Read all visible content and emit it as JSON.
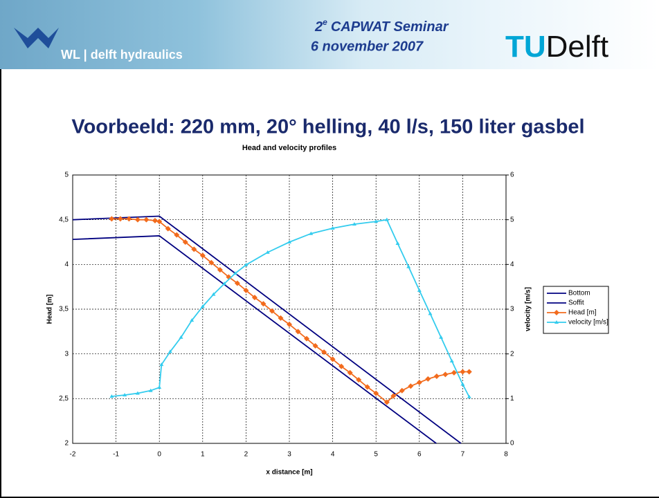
{
  "header": {
    "logo_text": "WL | delft hydraulics",
    "seminar_number": "2",
    "seminar_suffix": "e",
    "seminar_name": "CAPWAT Seminar",
    "date": "6 november 2007",
    "tu": "TU",
    "delft": "Delft"
  },
  "slide_title": "Voorbeeld: 220 mm, 20° helling, 40 l/s, 150 liter gasbel",
  "chart_data": {
    "type": "line",
    "title": "Head and velocity profiles",
    "x_label": "x distance [m]",
    "y_label": "Head [m]",
    "y2_label": "velocity [m/s]",
    "xlim": [
      -2,
      8
    ],
    "xticks": [
      -2,
      -1,
      0,
      1,
      2,
      3,
      4,
      5,
      6,
      7,
      8
    ],
    "ylim": [
      2,
      5
    ],
    "yticks": [
      2,
      {
        "value": 2.5,
        "label": "2,5"
      },
      3,
      {
        "value": 3.5,
        "label": "3,5"
      },
      4,
      {
        "value": 4.5,
        "label": "4,5"
      },
      5
    ],
    "y2lim": [
      0,
      6
    ],
    "y2ticks": [
      0,
      1,
      2,
      3,
      4,
      5,
      6
    ],
    "grid": true,
    "legend": "right",
    "series": [
      {
        "name": "Bottom",
        "color": "#000080",
        "marker": "none",
        "x": [
          -2,
          0,
          6.39
        ],
        "values": [
          4.28,
          4.32,
          2
        ]
      },
      {
        "name": "Soffit",
        "color": "#000080",
        "marker": "none",
        "x": [
          -2,
          0,
          6.96
        ],
        "values": [
          4.5,
          4.54,
          2
        ]
      },
      {
        "name": "Head [m]",
        "color": "#f26b1d",
        "marker": "diamond",
        "x": [
          -1.1,
          -0.9,
          -0.7,
          -0.5,
          -0.3,
          -0.1,
          0,
          0.2,
          0.4,
          0.6,
          0.8,
          1.0,
          1.2,
          1.4,
          1.6,
          1.8,
          2.0,
          2.2,
          2.4,
          2.6,
          2.8,
          3.0,
          3.2,
          3.4,
          3.6,
          3.8,
          4.0,
          4.2,
          4.4,
          4.6,
          4.8,
          5.0,
          5.25,
          5.4,
          5.6,
          5.8,
          6.0,
          6.2,
          6.4,
          6.6,
          6.8,
          7.0,
          7.15
        ],
        "values": [
          4.51,
          4.51,
          4.51,
          4.5,
          4.5,
          4.49,
          4.48,
          4.4,
          4.33,
          4.25,
          4.17,
          4.1,
          4.02,
          3.94,
          3.86,
          3.79,
          3.71,
          3.63,
          3.56,
          3.48,
          3.4,
          3.33,
          3.25,
          3.17,
          3.09,
          3.02,
          2.94,
          2.86,
          2.79,
          2.71,
          2.63,
          2.56,
          2.46,
          2.53,
          2.59,
          2.64,
          2.68,
          2.72,
          2.75,
          2.77,
          2.79,
          2.8,
          2.8
        ]
      },
      {
        "name": "velocity [m/s]",
        "color": "#33ccee",
        "marker": "triangle",
        "axis": "y2",
        "x": [
          -1.1,
          -0.8,
          -0.5,
          -0.2,
          0,
          0.05,
          0.25,
          0.5,
          0.75,
          1.0,
          1.25,
          1.5,
          1.75,
          2.0,
          2.5,
          3.0,
          3.5,
          4.0,
          4.5,
          5.0,
          5.25,
          5.5,
          5.75,
          6.0,
          6.25,
          6.5,
          6.75,
          7.0,
          7.15
        ],
        "values": [
          1.05,
          1.08,
          1.12,
          1.18,
          1.25,
          1.76,
          2.05,
          2.37,
          2.75,
          3.06,
          3.33,
          3.57,
          3.8,
          3.99,
          4.27,
          4.5,
          4.69,
          4.81,
          4.9,
          4.96,
          5.0,
          4.47,
          3.95,
          3.42,
          2.9,
          2.37,
          1.84,
          1.32,
          1.04
        ]
      }
    ]
  }
}
